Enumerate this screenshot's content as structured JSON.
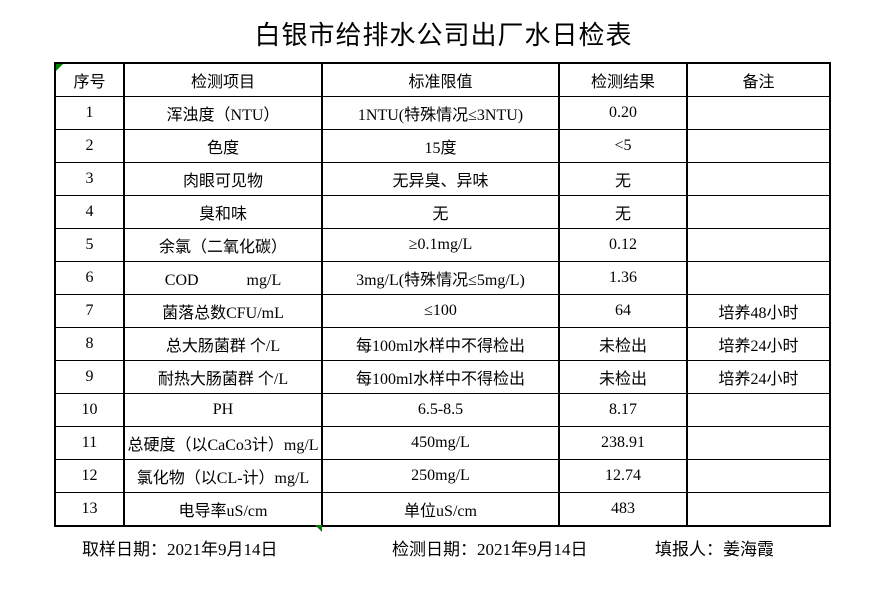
{
  "title": "白银市给排水公司出厂水日检表",
  "accent_colors": {
    "border": "#000000",
    "excel_marker_green": "#008000"
  },
  "table": {
    "column_keys": [
      "index",
      "item",
      "limit",
      "result",
      "remark"
    ],
    "headers": [
      "序号",
      "检测项目",
      "标准限值",
      "检测结果",
      "备注"
    ],
    "rows": [
      [
        "1",
        "浑浊度（NTU）",
        "1NTU(特殊情况≤3NTU)",
        "0.20",
        ""
      ],
      [
        "2",
        "色度",
        "15度",
        "<5",
        ""
      ],
      [
        "3",
        "肉眼可见物",
        "无异臭、异味",
        "无",
        ""
      ],
      [
        "4",
        "臭和味",
        "无",
        "无",
        ""
      ],
      [
        "5",
        "余氯（二氧化碳）",
        "≥0.1mg/L",
        "0.12",
        ""
      ],
      [
        "6",
        "COD　　　mg/L",
        "3mg/L(特殊情况≤5mg/L)",
        "1.36",
        ""
      ],
      [
        "7",
        "菌落总数CFU/mL",
        "≤100",
        "64",
        "培养48小时"
      ],
      [
        "8",
        "总大肠菌群 个/L",
        "每100ml水样中不得检出",
        "未检出",
        "培养24小时"
      ],
      [
        "9",
        "耐热大肠菌群 个/L",
        "每100ml水样中不得检出",
        "未检出",
        "培养24小时"
      ],
      [
        "10",
        "PH",
        "6.5-8.5",
        "8.17",
        ""
      ],
      [
        "11",
        "总硬度（以CaCo3计）mg/L",
        "450mg/L",
        "238.91",
        ""
      ],
      [
        "12",
        "氯化物（以CL-计）mg/L",
        "250mg/L",
        "12.74",
        ""
      ],
      [
        "13",
        "电导率uS/cm",
        "单位uS/cm",
        "483",
        ""
      ]
    ]
  },
  "footer": {
    "sampling": {
      "label": "取样日期：",
      "value": "2021年9月14日"
    },
    "testing": {
      "label": "检测日期：",
      "value": "2021年9月14日"
    },
    "reporter": {
      "label": "填报人：",
      "value": "姜海霞"
    }
  },
  "icons": {
    "excel_error_marker": "green-triangle",
    "excel_bottom_marker": "green-triangle"
  }
}
